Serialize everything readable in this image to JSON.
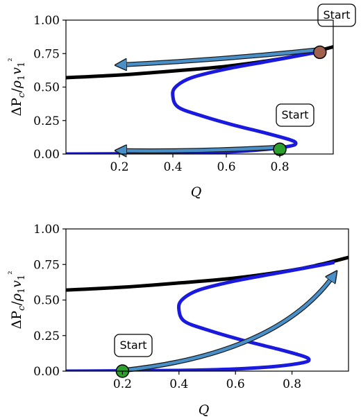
{
  "chart_data": [
    {
      "type": "line",
      "xlabel": "Q",
      "ylabel": "ΔPc/ρ1v1²",
      "xlim": [
        0,
        1
      ],
      "ylim": [
        0,
        1
      ],
      "xticks": [
        0.2,
        0.4,
        0.6,
        0.8
      ],
      "xtick_labels": [
        "0.2",
        "0.4",
        "0.6",
        "0.8"
      ],
      "yticks": [
        0,
        0.25,
        0.5,
        0.75,
        1.0
      ],
      "ytick_labels": [
        "0.00",
        "0.25",
        "0.50",
        "0.75",
        "1.00"
      ],
      "grid": false,
      "series": [
        {
          "color": "#000000",
          "points": [
            [
              0,
              0.57
            ],
            [
              0.2,
              0.59
            ],
            [
              0.4,
              0.62
            ],
            [
              0.6,
              0.655
            ],
            [
              0.8,
              0.71
            ],
            [
              0.9,
              0.75
            ],
            [
              1.0,
              0.8
            ]
          ]
        },
        {
          "color": "#1a1adf",
          "points": [
            [
              0,
              0.0
            ],
            [
              0.4,
              0.005
            ],
            [
              0.6,
              0.015
            ],
            [
              0.75,
              0.035
            ],
            [
              0.84,
              0.06
            ],
            [
              0.86,
              0.08
            ],
            [
              0.84,
              0.105
            ],
            [
              0.75,
              0.155
            ],
            [
              0.62,
              0.22
            ],
            [
              0.5,
              0.29
            ],
            [
              0.42,
              0.35
            ],
            [
              0.4,
              0.43
            ],
            [
              0.41,
              0.5
            ],
            [
              0.47,
              0.57
            ],
            [
              0.6,
              0.635
            ],
            [
              0.75,
              0.69
            ],
            [
              0.9,
              0.745
            ],
            [
              0.95,
              0.765
            ]
          ]
        }
      ],
      "arrows": [
        {
          "from": [
            0.95,
            0.78
          ],
          "to": [
            0.2,
            0.665
          ]
        },
        {
          "from": [
            0.79,
            0.05
          ],
          "to": [
            0.2,
            0.025
          ]
        }
      ],
      "markers": [
        {
          "x": 0.95,
          "y": 0.76,
          "color": "#a0614f"
        },
        {
          "x": 0.8,
          "y": 0.035,
          "color": "#2ca02c"
        }
      ],
      "annotations": [
        {
          "text": "Start",
          "x": 0.95,
          "y": 0.78
        },
        {
          "text": "Start",
          "x": 0.8,
          "y": 0.035
        }
      ]
    },
    {
      "type": "line",
      "xlabel": "Q",
      "ylabel": "ΔPc/ρ1v1²",
      "xlim": [
        0,
        1
      ],
      "ylim": [
        0,
        1
      ],
      "xticks": [
        0.2,
        0.4,
        0.6,
        0.8
      ],
      "xtick_labels": [
        "0.2",
        "0.4",
        "0.6",
        "0.8"
      ],
      "yticks": [
        0,
        0.25,
        0.5,
        0.75,
        1.0
      ],
      "ytick_labels": [
        "0.00",
        "0.25",
        "0.50",
        "0.75",
        "1.00"
      ],
      "grid": false,
      "series": [
        {
          "color": "#000000",
          "points": [
            [
              0,
              0.57
            ],
            [
              0.2,
              0.59
            ],
            [
              0.4,
              0.62
            ],
            [
              0.6,
              0.655
            ],
            [
              0.8,
              0.71
            ],
            [
              0.9,
              0.75
            ],
            [
              1.0,
              0.8
            ]
          ]
        },
        {
          "color": "#1a1adf",
          "points": [
            [
              0,
              0.0
            ],
            [
              0.4,
              0.005
            ],
            [
              0.6,
              0.015
            ],
            [
              0.75,
              0.035
            ],
            [
              0.84,
              0.06
            ],
            [
              0.86,
              0.08
            ],
            [
              0.84,
              0.105
            ],
            [
              0.75,
              0.155
            ],
            [
              0.62,
              0.22
            ],
            [
              0.5,
              0.29
            ],
            [
              0.42,
              0.35
            ],
            [
              0.4,
              0.43
            ],
            [
              0.41,
              0.5
            ],
            [
              0.47,
              0.57
            ],
            [
              0.6,
              0.635
            ],
            [
              0.75,
              0.69
            ],
            [
              0.9,
              0.745
            ],
            [
              0.95,
              0.765
            ]
          ]
        }
      ],
      "arrows": [
        {
          "from": [
            0.2,
            0.005
          ],
          "to": [
            0.95,
            0.68
          ],
          "curved": true
        }
      ],
      "markers": [
        {
          "x": 0.2,
          "y": 0.0,
          "color": "#2ca02c"
        }
      ],
      "annotations": [
        {
          "text": "Start",
          "x": 0.2,
          "y": 0.0
        }
      ]
    }
  ]
}
